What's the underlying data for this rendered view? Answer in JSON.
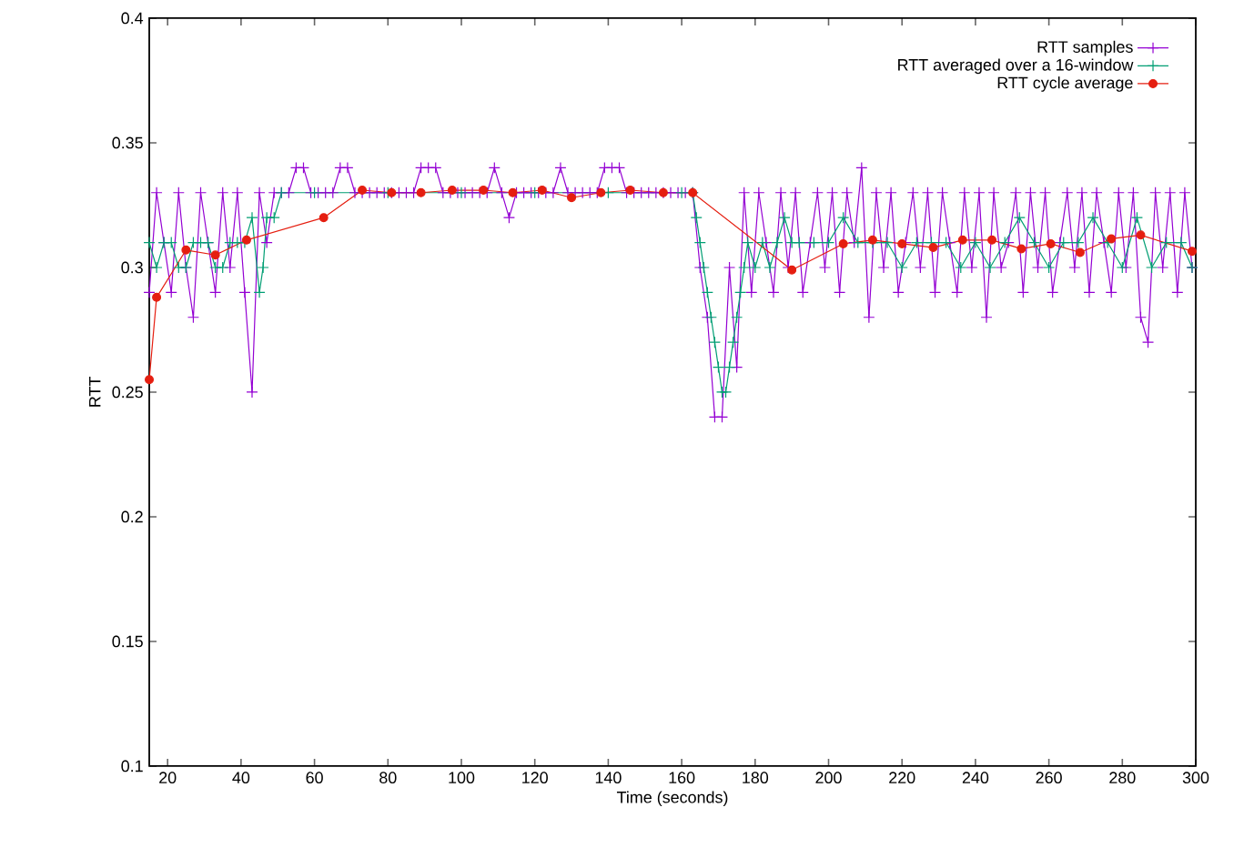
{
  "chart_data": {
    "type": "line",
    "xlabel": "Time (seconds)",
    "ylabel": "RTT",
    "xlim": [
      15,
      300
    ],
    "ylim": [
      0.1,
      0.4
    ],
    "xticks": [
      20,
      40,
      60,
      80,
      100,
      120,
      140,
      160,
      180,
      200,
      220,
      240,
      260,
      280,
      300
    ],
    "yticks": [
      0.1,
      0.15,
      0.2,
      0.25,
      0.3,
      0.35,
      0.4
    ],
    "grid": false,
    "legend": "top right",
    "line_style": "solid",
    "series": [
      {
        "name": "RTT samples",
        "color": "#9400d3",
        "marker": "cross",
        "x": [
          15,
          17,
          19,
          21,
          23,
          25,
          27,
          29,
          31,
          33,
          35,
          37,
          39,
          41,
          43,
          45,
          47,
          49,
          51,
          53,
          55,
          57,
          59,
          61,
          63,
          65,
          67,
          69,
          71,
          73,
          75,
          77,
          79,
          81,
          83,
          85,
          87,
          89,
          91,
          93,
          95,
          97,
          99,
          101,
          103,
          105,
          107,
          109,
          111,
          113,
          115,
          117,
          119,
          121,
          123,
          125,
          127,
          129,
          131,
          133,
          135,
          137,
          139,
          141,
          143,
          145,
          147,
          149,
          151,
          153,
          155,
          157,
          159,
          161,
          163,
          165,
          167,
          169,
          171,
          173,
          175,
          177,
          179,
          181,
          183,
          185,
          187,
          189,
          191,
          193,
          195,
          197,
          199,
          201,
          203,
          205,
          207,
          209,
          211,
          213,
          215,
          217,
          219,
          221,
          223,
          225,
          227,
          229,
          231,
          233,
          235,
          237,
          239,
          241,
          243,
          245,
          247,
          249,
          251,
          253,
          255,
          257,
          259,
          261,
          263,
          265,
          267,
          269,
          271,
          273,
          275,
          277,
          279,
          281,
          283,
          285,
          287,
          289,
          291,
          293,
          295,
          297,
          299
        ],
        "values": [
          0.29,
          0.33,
          0.31,
          0.29,
          0.33,
          0.3,
          0.28,
          0.33,
          0.31,
          0.29,
          0.33,
          0.3,
          0.33,
          0.29,
          0.25,
          0.33,
          0.31,
          0.33,
          0.33,
          0.33,
          0.34,
          0.34,
          0.33,
          0.33,
          0.33,
          0.33,
          0.34,
          0.34,
          0.33,
          0.33,
          0.33,
          0.33,
          0.33,
          0.33,
          0.33,
          0.33,
          0.33,
          0.34,
          0.34,
          0.34,
          0.33,
          0.33,
          0.33,
          0.33,
          0.33,
          0.33,
          0.33,
          0.34,
          0.33,
          0.32,
          0.33,
          0.33,
          0.33,
          0.33,
          0.33,
          0.33,
          0.34,
          0.33,
          0.33,
          0.33,
          0.33,
          0.33,
          0.34,
          0.34,
          0.34,
          0.33,
          0.33,
          0.33,
          0.33,
          0.33,
          0.33,
          0.33,
          0.33,
          0.33,
          0.33,
          0.3,
          0.28,
          0.24,
          0.24,
          0.3,
          0.26,
          0.33,
          0.29,
          0.33,
          0.31,
          0.29,
          0.33,
          0.3,
          0.33,
          0.29,
          0.31,
          0.33,
          0.3,
          0.33,
          0.29,
          0.33,
          0.31,
          0.34,
          0.28,
          0.33,
          0.3,
          0.33,
          0.29,
          0.31,
          0.33,
          0.3,
          0.33,
          0.29,
          0.33,
          0.31,
          0.29,
          0.33,
          0.3,
          0.33,
          0.28,
          0.33,
          0.3,
          0.31,
          0.33,
          0.29,
          0.33,
          0.3,
          0.33,
          0.29,
          0.31,
          0.33,
          0.3,
          0.33,
          0.29,
          0.33,
          0.31,
          0.29,
          0.33,
          0.3,
          0.33,
          0.28,
          0.27,
          0.33,
          0.3,
          0.33,
          0.29,
          0.33,
          0.3
        ]
      },
      {
        "name": "RTT averaged over a 16-window",
        "color": "#009e73",
        "marker": "cross",
        "x": [
          15,
          17,
          19,
          21,
          23,
          25,
          27,
          29,
          31,
          33,
          35,
          37,
          39,
          41,
          43,
          45,
          46,
          47,
          49,
          51,
          60,
          80,
          100,
          120,
          140,
          160,
          163,
          164,
          165,
          166,
          167,
          168,
          169,
          170,
          171,
          172,
          173,
          174,
          175,
          176,
          177,
          178,
          180,
          182,
          184,
          186,
          188,
          190,
          192,
          196,
          200,
          204,
          208,
          212,
          216,
          220,
          224,
          228,
          232,
          236,
          240,
          244,
          248,
          252,
          256,
          260,
          264,
          268,
          272,
          276,
          280,
          284,
          288,
          292,
          296,
          299
        ],
        "values": [
          0.31,
          0.3,
          0.31,
          0.31,
          0.3,
          0.3,
          0.31,
          0.31,
          0.31,
          0.3,
          0.3,
          0.31,
          0.31,
          0.31,
          0.32,
          0.29,
          0.3,
          0.32,
          0.32,
          0.33,
          0.33,
          0.33,
          0.33,
          0.33,
          0.33,
          0.33,
          0.33,
          0.32,
          0.31,
          0.3,
          0.29,
          0.28,
          0.27,
          0.26,
          0.25,
          0.25,
          0.26,
          0.27,
          0.28,
          0.29,
          0.3,
          0.31,
          0.3,
          0.31,
          0.3,
          0.31,
          0.32,
          0.31,
          0.31,
          0.31,
          0.31,
          0.32,
          0.31,
          0.31,
          0.31,
          0.3,
          0.31,
          0.31,
          0.31,
          0.3,
          0.31,
          0.3,
          0.31,
          0.32,
          0.31,
          0.3,
          0.31,
          0.31,
          0.32,
          0.31,
          0.3,
          0.32,
          0.3,
          0.31,
          0.31,
          0.3
        ]
      },
      {
        "name": "RTT cycle average",
        "color": "#e51e10",
        "marker": "circle",
        "x": [
          15,
          17,
          25,
          33,
          41.5,
          62.5,
          73,
          81,
          89,
          97.5,
          106,
          114,
          122,
          130,
          138,
          146,
          155,
          163,
          190,
          204,
          212,
          220,
          228.5,
          236.5,
          244.5,
          252.5,
          260.5,
          268.5,
          277,
          285,
          299
        ],
        "values": [
          0.255,
          0.288,
          0.307,
          0.305,
          0.311,
          0.32,
          0.331,
          0.33,
          0.33,
          0.331,
          0.331,
          0.33,
          0.331,
          0.328,
          0.33,
          0.331,
          0.33,
          0.33,
          0.299,
          0.3095,
          0.311,
          0.3095,
          0.308,
          0.311,
          0.311,
          0.3075,
          0.3095,
          0.306,
          0.3115,
          0.313,
          0.3065
        ]
      }
    ]
  }
}
